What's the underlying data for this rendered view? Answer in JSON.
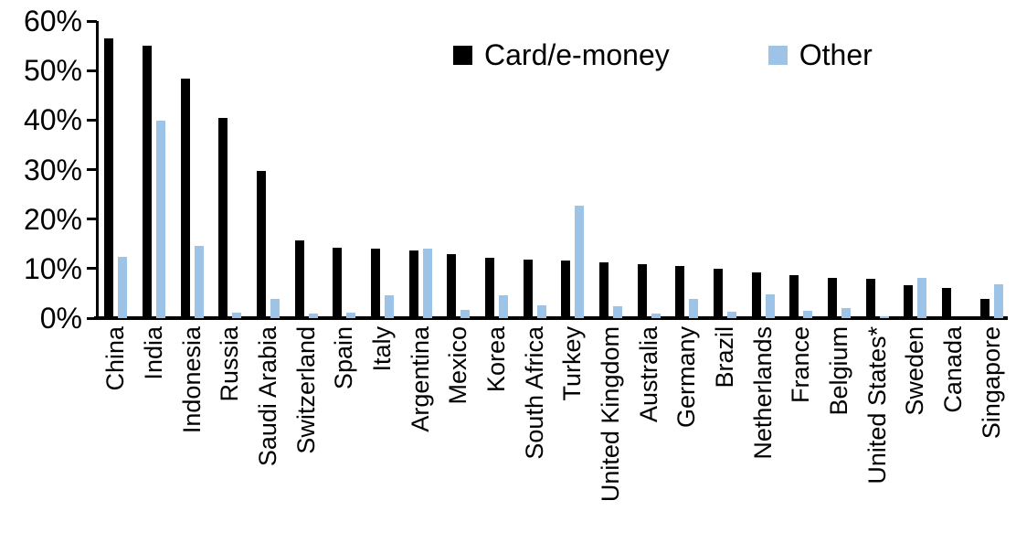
{
  "chart_data": {
    "type": "bar",
    "title": "",
    "xlabel": "",
    "ylabel": "",
    "legend_position": "top-center",
    "grid": false,
    "y_axis": {
      "min": 0,
      "max": 60,
      "step": 10,
      "ticks": [
        {
          "label": "60%",
          "value": 60
        },
        {
          "label": "50%",
          "value": 50
        },
        {
          "label": "40%",
          "value": 40
        },
        {
          "label": "30%",
          "value": 30
        },
        {
          "label": "20%",
          "value": 20
        },
        {
          "label": "10%",
          "value": 10
        },
        {
          "label": "0%",
          "value": 0
        }
      ]
    },
    "categories": [
      "China",
      "India",
      "Indonesia",
      "Russia",
      "Saudi Arabia",
      "Switzerland",
      "Spain",
      "Italy",
      "Argentina",
      "Mexico",
      "Korea",
      "South Africa",
      "Turkey",
      "United Kingdom",
      "Australia",
      "Germany",
      "Brazil",
      "Netherlands",
      "France",
      "Belgium",
      "United States*",
      "Sweden",
      "Canada",
      "Singapore"
    ],
    "series": [
      {
        "name": "Card/e-money",
        "color": "#000000",
        "values": [
          56.5,
          55.0,
          48.4,
          40.5,
          29.8,
          15.6,
          14.2,
          14.1,
          13.7,
          13.0,
          12.2,
          11.8,
          11.7,
          11.2,
          10.8,
          10.6,
          10.0,
          9.3,
          8.7,
          8.2,
          7.9,
          6.6,
          6.1,
          3.9
        ]
      },
      {
        "name": "Other",
        "color": "#9DC3E6",
        "values": [
          12.3,
          39.8,
          14.6,
          1.1,
          3.9,
          0.9,
          1.1,
          4.6,
          14.0,
          1.6,
          4.7,
          2.5,
          22.7,
          2.4,
          1.0,
          3.9,
          1.2,
          4.8,
          1.5,
          2.1,
          0.3,
          8.1,
          0.0,
          6.8
        ]
      }
    ]
  }
}
